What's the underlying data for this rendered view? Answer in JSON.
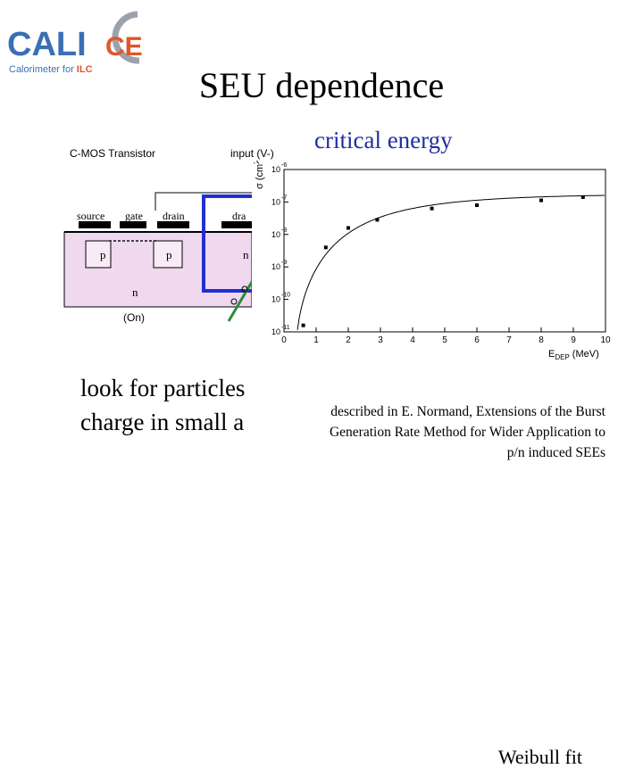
{
  "logo": {
    "name": "CALICE",
    "letters": [
      "C",
      "A",
      "L",
      "I",
      "C",
      "E"
    ],
    "tagline_prefix": "Calorimeter for ",
    "tagline_highlight": "ILC"
  },
  "title": "SEU dependence",
  "annotation": "critical energy",
  "diagram": {
    "title": "C-MOS Transistor",
    "input_label": "input (V-)",
    "labels": {
      "source": "source",
      "gate": "gate",
      "drain1": "drain",
      "drain2": "dra",
      "p1": "p",
      "p2": "p",
      "n_right": "n",
      "n": "n",
      "on": "(On)"
    }
  },
  "chart_data": {
    "type": "scatter",
    "xlabel": "E",
    "xlabel_sub": "DEP",
    "xlabel_unit": "(MeV)",
    "ylabel": "σ (cm",
    "ylabel_sup": "2",
    "ylabel_end": ")",
    "xlim": [
      0,
      10
    ],
    "x_ticks": [
      "0",
      "1",
      "2",
      "3",
      "4",
      "5",
      "6",
      "7",
      "8",
      "9",
      "10"
    ],
    "y_ticks": [
      "10",
      "10",
      "10",
      "10",
      "10",
      "10"
    ],
    "y_tick_exps": [
      "-6",
      "-7",
      "-8",
      "-9",
      "-10",
      "-11"
    ],
    "points": [
      {
        "x": 0.6,
        "y": -10.8
      },
      {
        "x": 1.3,
        "y": -8.4
      },
      {
        "x": 2.0,
        "y": -7.8
      },
      {
        "x": 2.9,
        "y": -7.55
      },
      {
        "x": 4.6,
        "y": -7.2
      },
      {
        "x": 6.0,
        "y": -7.1
      },
      {
        "x": 8.0,
        "y": -6.95
      },
      {
        "x": 9.3,
        "y": -6.85
      }
    ],
    "fit": "Weibull"
  },
  "body": {
    "line1": "look for particles",
    "line2": "charge in small a"
  },
  "weibull": "Weibull fit",
  "description": {
    "line1": "described in E. Normand, Extensions of the Burst",
    "line2": "Generation Rate Method for Wider Application to",
    "line3": "p/n induced SEEs"
  },
  "colors": {
    "logo_blue": "#3a6fb5",
    "logo_orange": "#e2552a",
    "annotation": "#1f2fa0",
    "substrate": "#f0d8ef",
    "highlight": "#1f2fd0",
    "ray": "#2e8b3a"
  }
}
